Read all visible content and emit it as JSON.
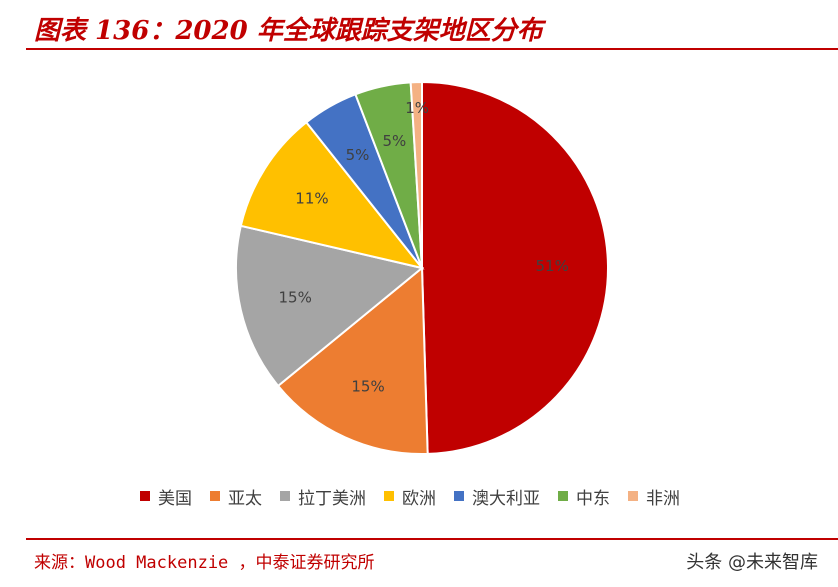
{
  "header": {
    "title": "图表 136：2020 年全球跟踪支架地区分布"
  },
  "chart_data": {
    "type": "pie",
    "title": "图表 136：2020 年全球跟踪支架地区分布",
    "slices": [
      {
        "name": "美国",
        "value": 51,
        "label": "51%",
        "color": "#c00000"
      },
      {
        "name": "亚太",
        "value": 15,
        "label": "15%",
        "color": "#ed7d31"
      },
      {
        "name": "拉丁美洲",
        "value": 15,
        "label": "15%",
        "color": "#a5a5a5"
      },
      {
        "name": "欧洲",
        "value": 11,
        "label": "11%",
        "color": "#ffc000"
      },
      {
        "name": "澳大利亚",
        "value": 5,
        "label": "5%",
        "color": "#4472c4"
      },
      {
        "name": "中东",
        "value": 5,
        "label": "5%",
        "color": "#70ad47"
      },
      {
        "name": "非洲",
        "value": 1,
        "label": "1%",
        "color": "#f4b183"
      }
    ],
    "start": "12 o'clock",
    "direction": "clockwise",
    "legend_position": "bottom"
  },
  "footer": {
    "source": "来源：Wood Mackenzie ，中泰证券研究所",
    "watermark": "头条 @未来智库"
  }
}
